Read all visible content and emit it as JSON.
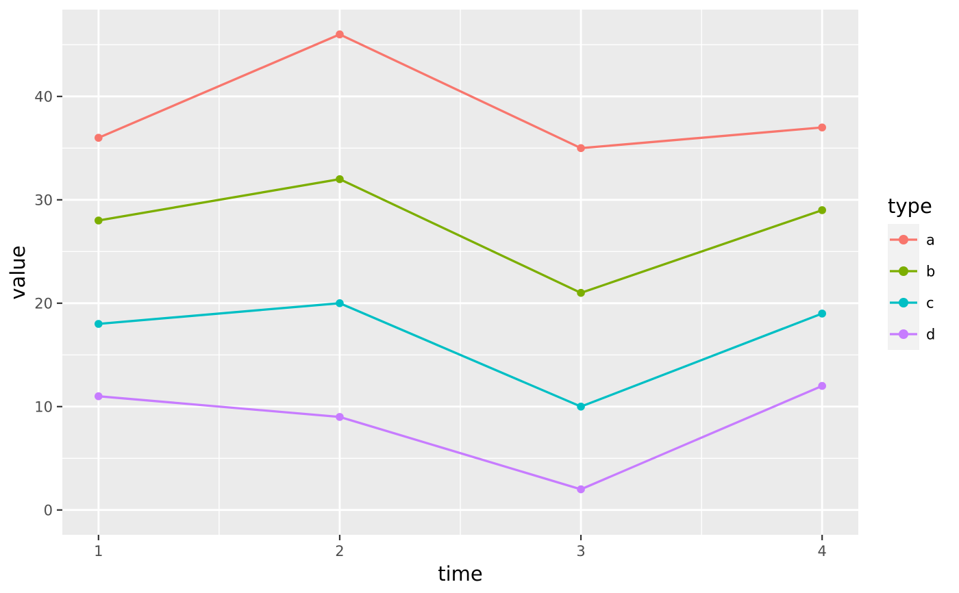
{
  "chart_data": {
    "type": "line",
    "title": "",
    "xlabel": "time",
    "ylabel": "value",
    "x": [
      1,
      2,
      3,
      4
    ],
    "series": [
      {
        "name": "a",
        "color": "#F8766D",
        "values": [
          36,
          46,
          35,
          37
        ]
      },
      {
        "name": "b",
        "color": "#7CAE00",
        "values": [
          28,
          32,
          21,
          29
        ]
      },
      {
        "name": "c",
        "color": "#00BFC4",
        "values": [
          18,
          20,
          10,
          19
        ]
      },
      {
        "name": "d",
        "color": "#C77CFF",
        "values": [
          11,
          9,
          2,
          12
        ]
      }
    ],
    "x_ticks": [
      "1",
      "2",
      "3",
      "4"
    ],
    "x_tick_values": [
      1,
      2,
      3,
      4
    ],
    "y_ticks": [
      "0",
      "10",
      "20",
      "30",
      "40"
    ],
    "y_tick_values": [
      0,
      10,
      20,
      30,
      40
    ],
    "x_minor": [
      1.5,
      2.5,
      3.5
    ],
    "y_minor": [
      5,
      15,
      25,
      35,
      45
    ],
    "xlim": [
      0.85,
      4.15
    ],
    "ylim": [
      -2.4,
      48.4
    ],
    "grid": true,
    "legend": {
      "title": "type",
      "position": "right",
      "entries": [
        "a",
        "b",
        "c",
        "d"
      ]
    }
  },
  "style": {
    "background": "#FFFFFF",
    "panel_fill": "#EBEBEB",
    "grid_color": "#FFFFFF",
    "tick_mark_color": "#333333",
    "tick_label_color": "#4D4D4D",
    "axis_title_color": "#000000",
    "legend_key_fill": "#F2F2F2"
  }
}
